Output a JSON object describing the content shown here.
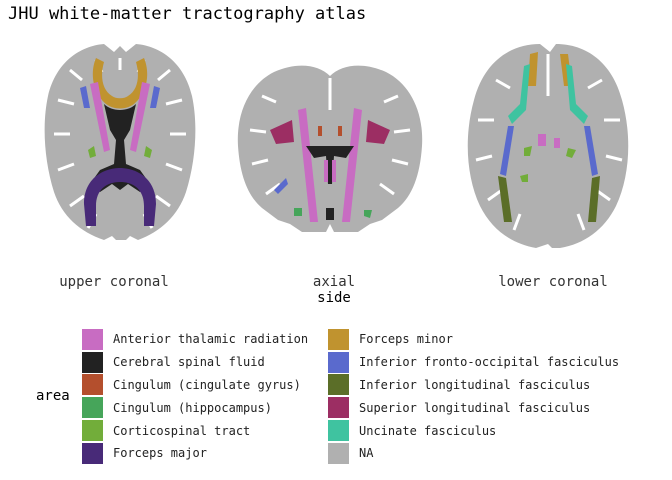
{
  "title": "JHU white-matter tractography atlas",
  "panels": [
    {
      "label": "upper coronal"
    },
    {
      "label": "axial"
    },
    {
      "label": "lower coronal"
    }
  ],
  "x_axis_title": "side",
  "legend": {
    "title": "area",
    "items": [
      {
        "label": "Anterior thalamic radiation",
        "color": "#C86CC2"
      },
      {
        "label": "Cerebral spinal fluid",
        "color": "#222222"
      },
      {
        "label": "Cingulum (cingulate gyrus)",
        "color": "#B44F2D"
      },
      {
        "label": "Cingulum (hippocampus)",
        "color": "#46A55A"
      },
      {
        "label": "Corticospinal tract",
        "color": "#72AD3A"
      },
      {
        "label": "Forceps major",
        "color": "#482A78"
      },
      {
        "label": "Forceps minor",
        "color": "#C0932F"
      },
      {
        "label": "Inferior fronto-occipital fasciculus",
        "color": "#5A6ACD"
      },
      {
        "label": "Inferior longitudinal fasciculus",
        "color": "#5B6E28"
      },
      {
        "label": "Superior longitudinal fasciculus",
        "color": "#9C2E63"
      },
      {
        "label": "Uncinate fasciculus",
        "color": "#3FC3A0"
      },
      {
        "label": "NA",
        "color": "#B0B0B0"
      }
    ]
  }
}
